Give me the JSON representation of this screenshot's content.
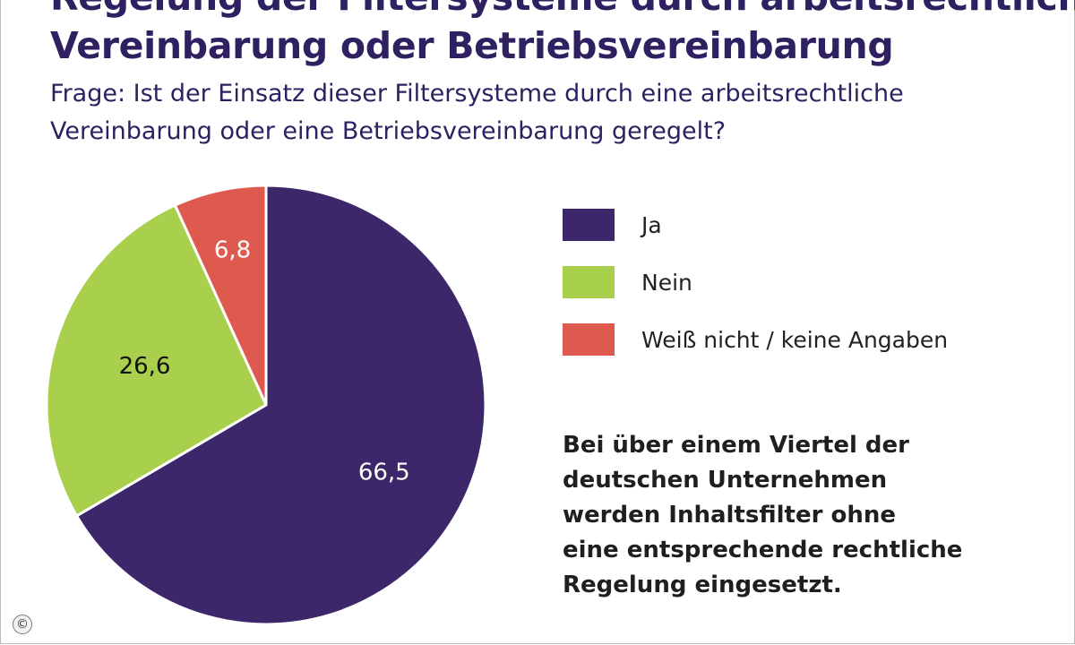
{
  "title_lines": [
    "Regelung der Filtersysteme durch arbeitsrechtliche",
    "Vereinbarung oder Betriebsvereinbarung"
  ],
  "question_lines": [
    "Frage: Ist der Einsatz dieser Filtersysteme durch eine arbeitsrechtliche",
    "Vereinbarung oder eine Betriebsvereinbarung geregelt?"
  ],
  "note_lines": [
    "Bei über einem Viertel der",
    "deutschen Unternehmen",
    "werden Inhaltsfilter ohne",
    "eine entsprechende rechtliche",
    "Regelung eingesetzt."
  ],
  "copyright_symbol": "©",
  "colors": {
    "ja": "#3b2769",
    "nein": "#a9d04c",
    "weiss_nicht": "#df5a4e",
    "text_dark": "#2f2161"
  },
  "chart_data": {
    "type": "pie",
    "title": "Regelung der Filtersysteme durch arbeitsrechtliche Vereinbarung oder Betriebsvereinbarung",
    "slices": [
      {
        "label": "Ja",
        "value": 66.5,
        "value_label": "66,5",
        "color": "#3b2769",
        "label_color": "#ffffff"
      },
      {
        "label": "Nein",
        "value": 26.6,
        "value_label": "26,6",
        "color": "#a9d04c",
        "label_color": "#111111"
      },
      {
        "label": "Weiß nicht / keine Angaben",
        "value": 6.8,
        "value_label": "6,8",
        "color": "#df5a4e",
        "label_color": "#ffffff"
      }
    ],
    "start": "12 o'clock",
    "direction": "clockwise",
    "legend_position": "right"
  }
}
